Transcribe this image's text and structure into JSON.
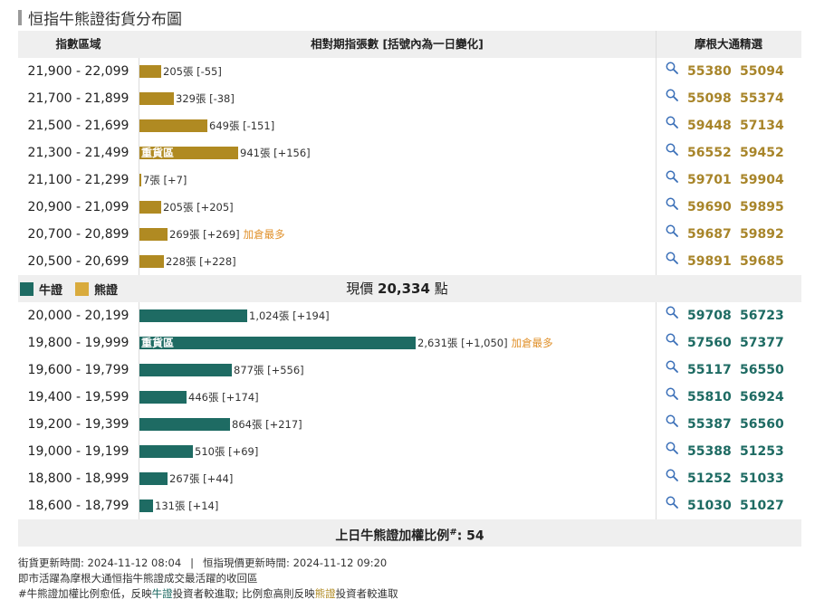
{
  "title": "恒指牛熊證街貨分布圖",
  "header": {
    "col_range": "指數區域",
    "col_qty": "相對期指張數 [括號內為一日變化]",
    "col_select": "摩根大通精選"
  },
  "bear_rows": [
    {
      "range": "21,900 - 22,099",
      "qty": "205張 [-55]",
      "heavy": "",
      "tag": "",
      "fill": 0.078,
      "codes": [
        "55380",
        "55094"
      ]
    },
    {
      "range": "21,700 - 21,899",
      "qty": "329張 [-38]",
      "heavy": "",
      "tag": "",
      "fill": 0.125,
      "codes": [
        "55098",
        "55374"
      ]
    },
    {
      "range": "21,500 - 21,699",
      "qty": "649張 [-151]",
      "heavy": "",
      "tag": "",
      "fill": 0.247,
      "codes": [
        "59448",
        "57134"
      ]
    },
    {
      "range": "21,300 - 21,499",
      "qty": "941張 [+156]",
      "heavy": "重貨區",
      "tag": "",
      "fill": 0.358,
      "codes": [
        "56552",
        "59452"
      ]
    },
    {
      "range": "21,100 - 21,299",
      "qty": "7張 [+7]",
      "heavy": "",
      "tag": "",
      "fill": 0.003,
      "codes": [
        "59701",
        "59904"
      ]
    },
    {
      "range": "20,900 - 21,099",
      "qty": "205張 [+205]",
      "heavy": "",
      "tag": "",
      "fill": 0.078,
      "codes": [
        "59690",
        "59895"
      ]
    },
    {
      "range": "20,700 - 20,899",
      "qty": "269張 [+269]",
      "heavy": "",
      "tag": "加倉最多",
      "fill": 0.102,
      "codes": [
        "59687",
        "59892"
      ]
    },
    {
      "range": "20,500 - 20,699",
      "qty": "228張 [+228]",
      "heavy": "",
      "tag": "",
      "fill": 0.087,
      "codes": [
        "59891",
        "59685"
      ]
    }
  ],
  "legend": {
    "bull": "牛證",
    "bear": "熊證"
  },
  "current_price": {
    "prefix": "現價",
    "value": "20,334",
    "suffix": "點"
  },
  "bull_rows": [
    {
      "range": "20,000 - 20,199",
      "qty": "1,024張 [+194]",
      "heavy": "",
      "tag": "",
      "fill": 0.389,
      "codes": [
        "59708",
        "56723"
      ]
    },
    {
      "range": "19,800 - 19,999",
      "qty": "2,631張 [+1,050]",
      "heavy": "重貨區",
      "tag": "加倉最多",
      "fill": 1.0,
      "codes": [
        "57560",
        "57377"
      ]
    },
    {
      "range": "19,600 - 19,799",
      "qty": "877張 [+556]",
      "heavy": "",
      "tag": "",
      "fill": 0.333,
      "codes": [
        "55117",
        "56550"
      ]
    },
    {
      "range": "19,400 - 19,599",
      "qty": "446張 [+174]",
      "heavy": "",
      "tag": "",
      "fill": 0.17,
      "codes": [
        "55810",
        "56924"
      ]
    },
    {
      "range": "19,200 - 19,399",
      "qty": "864張 [+217]",
      "heavy": "",
      "tag": "",
      "fill": 0.328,
      "codes": [
        "55387",
        "56560"
      ]
    },
    {
      "range": "19,000 - 19,199",
      "qty": "510張 [+69]",
      "heavy": "",
      "tag": "",
      "fill": 0.194,
      "codes": [
        "55388",
        "51253"
      ]
    },
    {
      "range": "18,800 - 18,999",
      "qty": "267張 [+44]",
      "heavy": "",
      "tag": "",
      "fill": 0.101,
      "codes": [
        "51252",
        "51033"
      ]
    },
    {
      "range": "18,600 - 18,799",
      "qty": "131張 [+14]",
      "heavy": "",
      "tag": "",
      "fill": 0.05,
      "codes": [
        "51030",
        "51027"
      ]
    }
  ],
  "ratio": {
    "label": "上日牛熊證加權比例",
    "mark": "#",
    "value": ": 54"
  },
  "notes": {
    "update_time": "街貨更新時間: 2024-11-12 08:04",
    "separator": "|",
    "price_time": "恒指現價更新時間: 2024-11-12 09:20",
    "line2": "即市活躍為摩根大通恒指牛熊證成交最活躍的收回區",
    "line3_a": "#牛熊證加權比例愈低，反映",
    "line3_bull": "牛證",
    "line3_b": "投資者較進取; 比例愈高則反映",
    "line3_bear": "熊證",
    "line3_c": "投資者較進取"
  },
  "colors": {
    "bull": "#1e6b63",
    "bear": "#b08a22",
    "tag": "#e0902a",
    "header_bg": "#efefef"
  },
  "icons": {
    "lookup": "magnifier-icon"
  }
}
